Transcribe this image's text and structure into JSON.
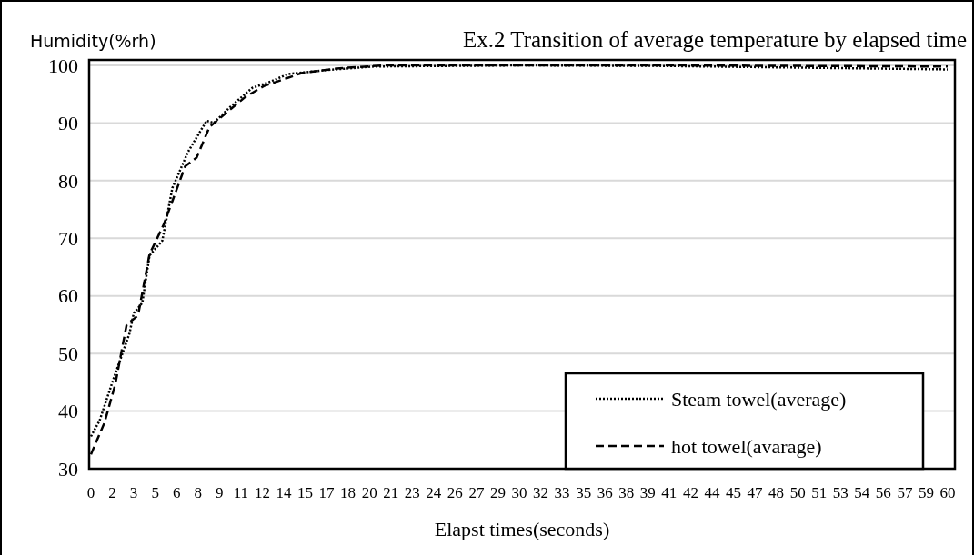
{
  "chart_data": {
    "type": "line",
    "title": "Ex.2 Transition of average temperature by elapsed time",
    "ylabel": "Humidity(%rh)",
    "xlabel": "Elapst times(seconds)",
    "xlim": [
      0,
      60
    ],
    "xticks": [
      0,
      {
        "value": 1.5,
        "label": "2"
      },
      3,
      {
        "value": 4.5,
        "label": "5"
      },
      6,
      {
        "value": 7.5,
        "label": "8"
      },
      9,
      {
        "value": 10.5,
        "label": "11"
      },
      12,
      {
        "value": 13.5,
        "label": "14"
      },
      15,
      {
        "value": 16.5,
        "label": "17"
      },
      18,
      {
        "value": 19.5,
        "label": "20"
      },
      21,
      {
        "value": 22.5,
        "label": "23"
      },
      24,
      {
        "value": 25.5,
        "label": "26"
      },
      27,
      {
        "value": 28.5,
        "label": "29"
      },
      30,
      {
        "value": 31.5,
        "label": "32"
      },
      33,
      {
        "value": 34.5,
        "label": "35"
      },
      36,
      {
        "value": 37.5,
        "label": "38"
      },
      39,
      {
        "value": 40.5,
        "label": "41"
      },
      42,
      {
        "value": 43.5,
        "label": "44"
      },
      45,
      {
        "value": 46.5,
        "label": "47"
      },
      48,
      {
        "value": 49.5,
        "label": "50"
      },
      51,
      {
        "value": 52.5,
        "label": "53"
      },
      54,
      {
        "value": 55.5,
        "label": "56"
      },
      57,
      {
        "value": 58.5,
        "label": "59"
      },
      60
    ],
    "ylim": [
      30,
      100
    ],
    "yticks": [
      30,
      40,
      50,
      60,
      70,
      80,
      90,
      100
    ],
    "grid": "y",
    "legend": "bottom right",
    "series": [
      {
        "name": "Steam towel(average)",
        "color": "#000000",
        "line_style": "dotted",
        "x": [
          0,
          0.6,
          1.5,
          2.7,
          3,
          3.6,
          4.1,
          5,
          5.7,
          6.8,
          8.1,
          8.6,
          9.8,
          11.3,
          12.6,
          13.8,
          16.6,
          19.8,
          30,
          40,
          50,
          60
        ],
        "values": [
          35.6,
          38.3,
          45,
          53.5,
          57,
          58.8,
          67,
          69.6,
          78.7,
          85,
          90.4,
          90,
          92.9,
          96.1,
          97.2,
          98.5,
          99.2,
          99.8,
          100,
          99.9,
          99.6,
          99.3
        ]
      },
      {
        "name": "hot towel(avarage)",
        "color": "#000000",
        "line_style": "dashed",
        "x": [
          0,
          0.95,
          1.7,
          2.5,
          3.3,
          4.1,
          5.1,
          6.6,
          7.4,
          8.3,
          9.3,
          10.8,
          12.1,
          13.4,
          14.8,
          17.4,
          20.6,
          30,
          40,
          50,
          60
        ],
        "values": [
          32.5,
          38,
          44.6,
          55,
          56.6,
          67.2,
          72.4,
          82.5,
          84,
          89.3,
          91.4,
          94.5,
          96.4,
          97.5,
          98.7,
          99.5,
          100,
          100,
          100,
          99.9,
          99.8
        ]
      }
    ]
  }
}
